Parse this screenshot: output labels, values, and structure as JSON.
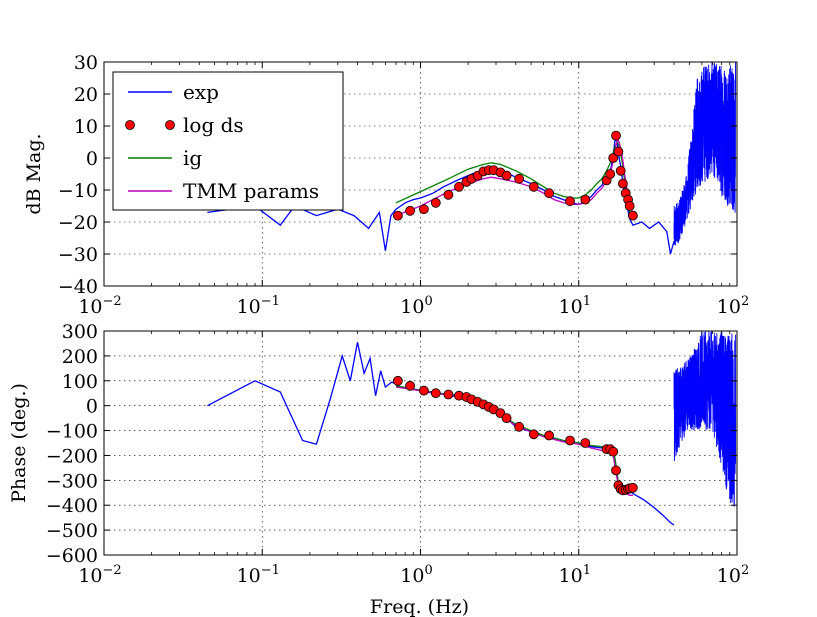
{
  "chart_data": [
    {
      "type": "line",
      "title": "",
      "xlabel": "",
      "ylabel": "dB Mag.",
      "xscale": "log",
      "xlim": [
        0.01,
        100
      ],
      "ylim": [
        -40,
        30
      ],
      "xticks": [
        0.01,
        0.1,
        1,
        10,
        100
      ],
      "xtick_labels": [
        {
          "base": "10",
          "exp": "−2"
        },
        {
          "base": "10",
          "exp": "−1"
        },
        {
          "base": "10",
          "exp": "0"
        },
        {
          "base": "10",
          "exp": "1"
        },
        {
          "base": "10",
          "exp": "2"
        }
      ],
      "yticks": [
        30,
        20,
        10,
        0,
        -10,
        -20,
        -30,
        -40
      ],
      "ytick_labels": [
        "30",
        "20",
        "10",
        "0",
        "−10",
        "−20",
        "−30",
        "−40"
      ],
      "grid": true,
      "legend": {
        "placement": "top-left",
        "entries": [
          {
            "label": "exp",
            "series": "exp"
          },
          {
            "label": "log ds",
            "series": "log ds"
          },
          {
            "label": "ig",
            "series": "ig"
          },
          {
            "label": "TMM params",
            "series": "TMM params"
          }
        ]
      },
      "series": [
        {
          "name": "exp",
          "color": "#0000ff",
          "style": "line",
          "x": [
            0.045,
            0.09,
            0.13,
            0.16,
            0.22,
            0.3,
            0.38,
            0.47,
            0.55,
            0.6,
            0.65,
            0.7,
            0.75,
            0.8,
            0.9,
            1.0,
            1.2,
            1.4,
            1.7,
            2.0,
            2.4,
            2.8,
            3.3,
            4.0,
            5.0,
            6.0,
            7.0,
            8.0,
            9.0,
            10.0,
            11.0,
            12.0,
            13.0,
            14.0,
            15.0,
            16.0,
            16.5,
            17.0,
            17.5,
            18.0,
            18.5,
            19.0,
            20.0,
            21.0,
            22.0,
            25.0,
            28.0,
            32.0,
            36.0,
            38.0,
            40.0
          ],
          "y": [
            -17,
            -15,
            -21,
            -15,
            -18,
            -16,
            -18,
            -22,
            -17,
            -29,
            -18,
            -16,
            -15,
            -14,
            -13,
            -12.5,
            -11,
            -9,
            -7,
            -5.5,
            -4,
            -3.5,
            -4,
            -6,
            -8,
            -10,
            -12,
            -13,
            -14,
            -14.5,
            -13.5,
            -12,
            -10,
            -8.5,
            -6,
            -3,
            1,
            6,
            5,
            0,
            -3,
            -8,
            -14,
            -19,
            -21,
            -20,
            -22,
            -20,
            -23,
            -30,
            -26
          ]
        },
        {
          "name": "exp-noise",
          "color": "#0000ff",
          "style": "noise",
          "x_range": [
            40,
            98
          ],
          "envelope_x": [
            40,
            44,
            48,
            52,
            56,
            62,
            70,
            80,
            90,
            98
          ],
          "envelope_min": [
            -30,
            -25,
            -20,
            -15,
            -10,
            -8,
            -5,
            -12,
            -16,
            -18
          ],
          "envelope_max": [
            -15,
            -12,
            -5,
            10,
            25,
            30,
            30,
            30,
            30,
            30
          ]
        },
        {
          "name": "log ds",
          "color": "#ff0000",
          "style": "marker",
          "x": [
            0.72,
            0.86,
            1.05,
            1.25,
            1.5,
            1.75,
            1.95,
            2.1,
            2.3,
            2.5,
            2.7,
            2.9,
            3.2,
            3.5,
            4.2,
            5.2,
            6.5,
            8.8,
            11.0,
            15.0,
            15.8,
            16.5,
            17.2,
            17.8,
            18.4,
            19.0,
            19.8,
            20.5,
            21.0,
            22.0
          ],
          "y": [
            -18,
            -16.5,
            -16,
            -14,
            -11.5,
            -9,
            -7.5,
            -6.5,
            -5.5,
            -4.2,
            -3.8,
            -3.8,
            -4.5,
            -5.5,
            -6.5,
            -9,
            -11,
            -13.5,
            -13,
            -7,
            -5,
            0,
            7,
            2,
            -4,
            -8,
            -11,
            -13,
            -15,
            -18
          ]
        },
        {
          "name": "ig",
          "color": "#008000",
          "style": "line",
          "x": [
            0.7,
            1.0,
            1.5,
            2.0,
            2.5,
            2.8,
            3.2,
            4.0,
            5.0,
            6.0,
            7.0,
            8.0,
            9.0,
            10.0,
            11.0,
            12.0,
            13.0,
            14.0,
            15.0,
            16.0,
            16.8,
            17.5,
            18.0,
            18.8,
            19.5,
            20.5,
            21.0,
            22.0
          ],
          "y": [
            -14,
            -10.5,
            -6.5,
            -3.5,
            -2,
            -1.5,
            -2,
            -4,
            -6.5,
            -9,
            -11,
            -12,
            -12.5,
            -12.5,
            -11.5,
            -10,
            -8,
            -6.5,
            -4,
            -1,
            3,
            5,
            4,
            -1,
            -7,
            -14,
            -17,
            -19
          ]
        },
        {
          "name": "TMM params",
          "color": "#bf00bf",
          "style": "line",
          "x": [
            0.7,
            1.0,
            1.5,
            2.0,
            2.5,
            2.8,
            3.2,
            4.0,
            5.0,
            6.0,
            7.0,
            8.0,
            9.0,
            10.0,
            11.0,
            12.0,
            13.0,
            14.0,
            15.0,
            16.0,
            16.8,
            17.5,
            18.0,
            18.8,
            19.5,
            20.5,
            21.0,
            22.0
          ],
          "y": [
            -18,
            -15,
            -10.5,
            -8,
            -6.5,
            -6,
            -6.5,
            -7.5,
            -9,
            -11,
            -13,
            -14,
            -14.5,
            -14.5,
            -14,
            -13,
            -11,
            -9.5,
            -7,
            -4,
            1,
            6,
            5,
            1,
            -5,
            -12,
            -15,
            -17
          ]
        }
      ]
    },
    {
      "type": "line",
      "title": "",
      "xlabel": "Freq. (Hz)",
      "ylabel": "Phase (deg.)",
      "xscale": "log",
      "xlim": [
        0.01,
        100
      ],
      "ylim": [
        -600,
        300
      ],
      "xticks": [
        0.01,
        0.1,
        1,
        10,
        100
      ],
      "xtick_labels": [
        {
          "base": "10",
          "exp": "−2"
        },
        {
          "base": "10",
          "exp": "−1"
        },
        {
          "base": "10",
          "exp": "0"
        },
        {
          "base": "10",
          "exp": "1"
        },
        {
          "base": "10",
          "exp": "2"
        }
      ],
      "yticks": [
        300,
        200,
        100,
        0,
        -100,
        -200,
        -300,
        -400,
        -500,
        -600
      ],
      "ytick_labels": [
        "300",
        "200",
        "100",
        "0",
        "−100",
        "−200",
        "−300",
        "−400",
        "−500",
        "−600"
      ],
      "grid": true,
      "series": [
        {
          "name": "exp",
          "color": "#0000ff",
          "style": "line",
          "x": [
            0.045,
            0.09,
            0.13,
            0.18,
            0.22,
            0.27,
            0.32,
            0.36,
            0.4,
            0.44,
            0.48,
            0.52,
            0.56,
            0.6,
            0.66,
            0.72,
            0.8,
            1.0,
            1.2,
            1.5,
            1.8,
            2.0,
            2.3,
            2.6,
            3.0,
            3.5,
            4.0,
            5.0,
            6.0,
            7.0,
            8.0,
            9.0,
            10.0,
            12.0,
            14.0,
            16.0,
            16.8,
            17.4,
            17.8,
            18.3,
            19.0,
            20.0,
            21.0,
            23.0,
            26.0,
            30.0,
            34.0,
            38.0,
            40.0
          ],
          "y": [
            0,
            100,
            55,
            -140,
            -155,
            30,
            200,
            100,
            255,
            130,
            190,
            40,
            140,
            75,
            95,
            80,
            70,
            60,
            50,
            45,
            40,
            30,
            15,
            -5,
            -25,
            -50,
            -85,
            -105,
            -120,
            -130,
            -140,
            -145,
            -150,
            -165,
            -170,
            -175,
            -200,
            -260,
            -320,
            -330,
            -340,
            -335,
            -345,
            -360,
            -380,
            -410,
            -440,
            -470,
            -480
          ]
        },
        {
          "name": "exp-noise",
          "color": "#0000ff",
          "style": "noise",
          "x_range": [
            40,
            98
          ],
          "envelope_x": [
            40,
            44,
            50,
            60,
            70,
            80,
            90,
            98
          ],
          "envelope_min": [
            -250,
            -150,
            -100,
            -100,
            -100,
            -250,
            -400,
            -420
          ],
          "envelope_max": [
            150,
            170,
            200,
            300,
            300,
            300,
            300,
            300
          ]
        },
        {
          "name": "log ds",
          "color": "#ff0000",
          "style": "marker",
          "x": [
            0.72,
            0.86,
            1.05,
            1.25,
            1.5,
            1.75,
            1.95,
            2.1,
            2.3,
            2.5,
            2.7,
            2.9,
            3.2,
            3.5,
            4.2,
            5.2,
            6.5,
            8.8,
            11.0,
            15.0,
            15.8,
            16.5,
            17.2,
            17.8,
            18.4,
            19.0,
            19.8,
            20.5,
            21.0,
            22.0
          ],
          "y": [
            100,
            80,
            60,
            50,
            45,
            40,
            35,
            25,
            15,
            5,
            -5,
            -15,
            -30,
            -50,
            -85,
            -115,
            -120,
            -140,
            -150,
            -175,
            -175,
            -185,
            -260,
            -320,
            -335,
            -340,
            -338,
            -335,
            -332,
            -330
          ]
        },
        {
          "name": "ig",
          "color": "#008000",
          "style": "line",
          "x": [
            0.7,
            1.0,
            1.5,
            2.0,
            2.5,
            3.0,
            3.5,
            4.0,
            5.0,
            6.0,
            8.0,
            10.0,
            12.0,
            14.0,
            15.5,
            16.5,
            17.2,
            17.8,
            18.5,
            19.5,
            21.0,
            22.0
          ],
          "y": [
            80,
            62,
            45,
            30,
            10,
            -20,
            -50,
            -75,
            -100,
            -120,
            -140,
            -150,
            -160,
            -165,
            -168,
            -172,
            -240,
            -310,
            -335,
            -340,
            -345,
            -350
          ]
        },
        {
          "name": "TMM params",
          "color": "#bf00bf",
          "style": "line",
          "x": [
            0.7,
            1.0,
            1.5,
            2.0,
            2.5,
            3.0,
            3.5,
            4.0,
            5.0,
            6.0,
            8.0,
            10.0,
            12.0,
            14.0,
            15.5,
            16.5,
            17.2,
            17.8,
            18.5,
            19.5,
            21.0,
            22.0
          ],
          "y": [
            75,
            60,
            42,
            25,
            5,
            -25,
            -55,
            -80,
            -105,
            -125,
            -145,
            -155,
            -170,
            -180,
            -190,
            -200,
            -270,
            -320,
            -340,
            -350,
            -360,
            -360
          ]
        }
      ]
    }
  ]
}
